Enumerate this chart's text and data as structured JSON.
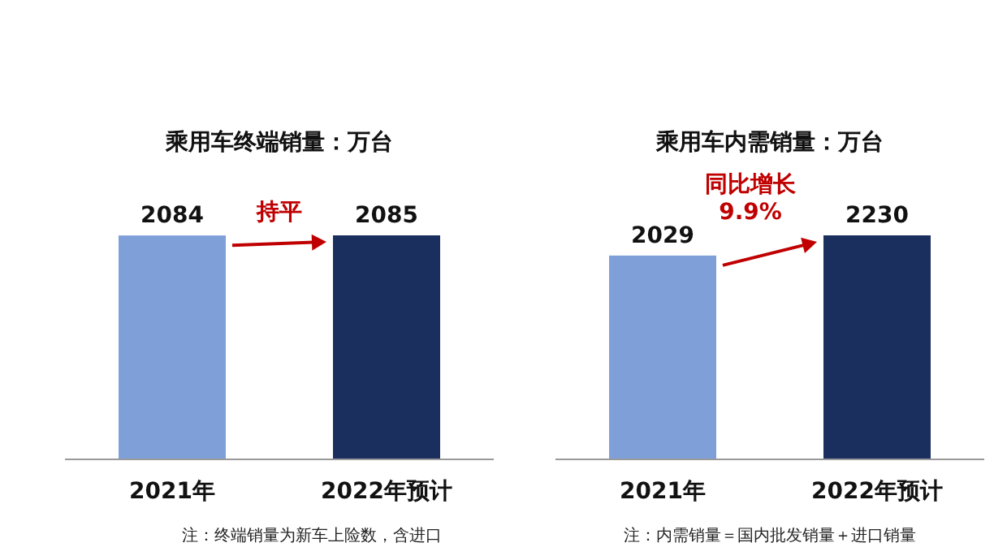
{
  "chart_data": [
    {
      "type": "bar",
      "title": "乘用车终端销量：万台",
      "categories": [
        "2021年",
        "2022年预计"
      ],
      "values": [
        2084,
        2085
      ],
      "colors": [
        "#7f9fd9",
        "#1b2f5f"
      ],
      "tick_labels": "x",
      "data_labels": true,
      "annotations": [
        "持平",
        "注：终端销量为新车上险数，含进口"
      ]
    },
    {
      "type": "bar",
      "title": "乘用车内需销量：万台",
      "categories": [
        "2021年",
        "2022年预计"
      ],
      "values": [
        2029,
        2230
      ],
      "colors": [
        "#7f9fd9",
        "#1b2f5f"
      ],
      "tick_labels": "x",
      "data_labels": true,
      "annotations": [
        "同比增长\n9.9%",
        "注：内需销量＝国内批发销量＋进口销量"
      ]
    }
  ]
}
